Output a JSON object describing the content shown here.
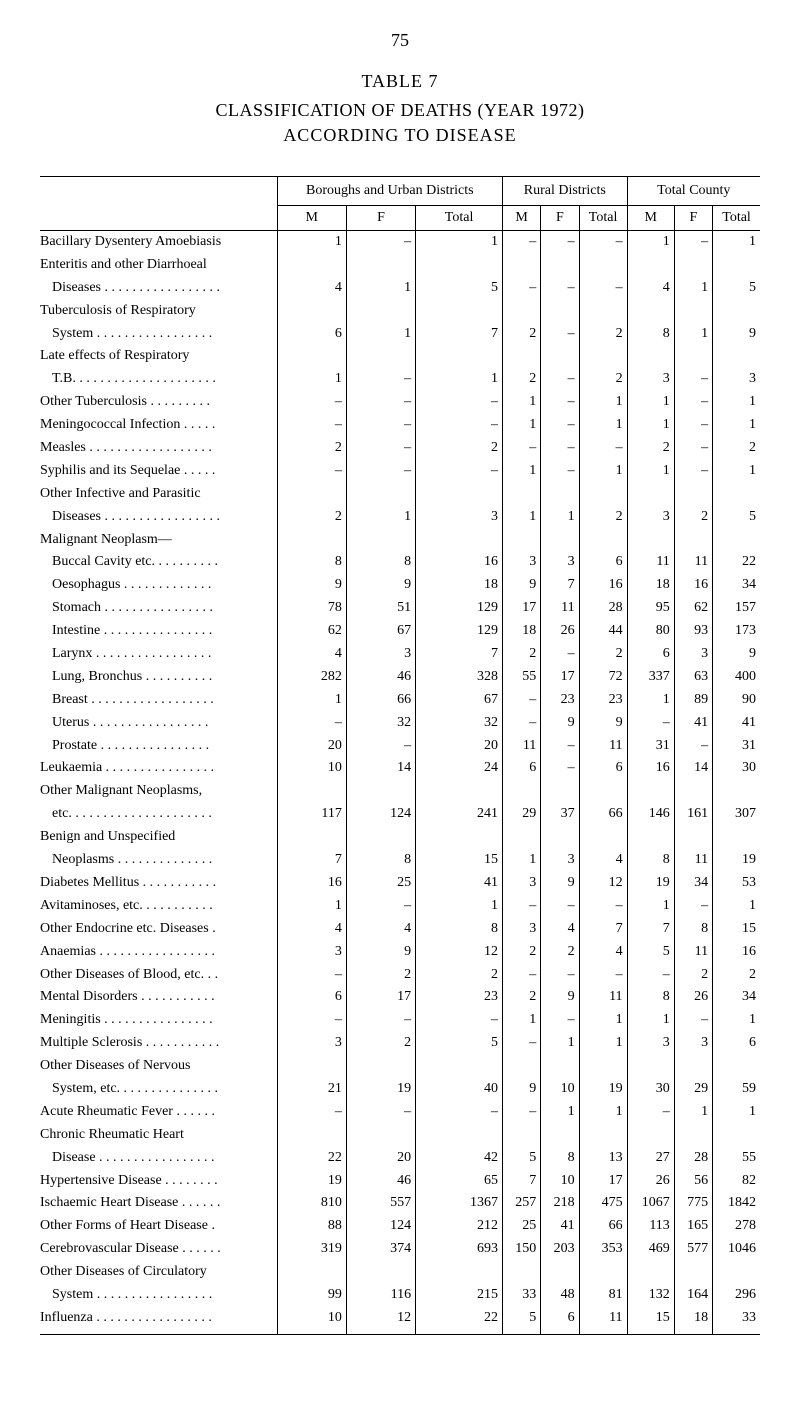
{
  "page_number": "75",
  "table_number": "TABLE 7",
  "title": "CLASSIFICATION OF DEATHS (YEAR 1972)",
  "subtitle": "ACCORDING TO DISEASE",
  "header_groups": [
    "Boroughs and Urban Districts",
    "Rural Districts",
    "Total County"
  ],
  "header_sub": [
    "M",
    "F",
    "Total",
    "M",
    "F",
    "Total",
    "M",
    "F",
    "Total"
  ],
  "rows": [
    {
      "name": "Bacillary Dysentery Amoebiasis",
      "indent": false,
      "cells": [
        "1",
        "–",
        "1",
        "–",
        "–",
        "–",
        "1",
        "–",
        "1"
      ]
    },
    {
      "name": "Enteritis and other Diarrhoeal",
      "indent": false,
      "cells": [
        "",
        "",
        "",
        "",
        "",
        "",
        "",
        "",
        ""
      ]
    },
    {
      "name": "Diseases . . . . . . . . . . . . . . . . .",
      "indent": true,
      "cells": [
        "4",
        "1",
        "5",
        "–",
        "–",
        "–",
        "4",
        "1",
        "5"
      ]
    },
    {
      "name": "Tuberculosis of Respiratory",
      "indent": false,
      "cells": [
        "",
        "",
        "",
        "",
        "",
        "",
        "",
        "",
        ""
      ]
    },
    {
      "name": "System . . . . . . . . . . . . . . . . .",
      "indent": true,
      "cells": [
        "6",
        "1",
        "7",
        "2",
        "–",
        "2",
        "8",
        "1",
        "9"
      ]
    },
    {
      "name": "Late effects of Respiratory",
      "indent": false,
      "cells": [
        "",
        "",
        "",
        "",
        "",
        "",
        "",
        "",
        ""
      ]
    },
    {
      "name": "T.B. . . . . . . . . . . . . . . . . . . . .",
      "indent": true,
      "cells": [
        "1",
        "–",
        "1",
        "2",
        "–",
        "2",
        "3",
        "–",
        "3"
      ]
    },
    {
      "name": "Other Tuberculosis . . . . . . . . .",
      "indent": false,
      "cells": [
        "–",
        "–",
        "–",
        "1",
        "–",
        "1",
        "1",
        "–",
        "1"
      ]
    },
    {
      "name": "Meningococcal Infection . . . . .",
      "indent": false,
      "cells": [
        "–",
        "–",
        "–",
        "1",
        "–",
        "1",
        "1",
        "–",
        "1"
      ]
    },
    {
      "name": "Measles . . . . . . . . . . . . . . . . . .",
      "indent": false,
      "cells": [
        "2",
        "–",
        "2",
        "–",
        "–",
        "–",
        "2",
        "–",
        "2"
      ]
    },
    {
      "name": "Syphilis and its Sequelae . . . . .",
      "indent": false,
      "cells": [
        "–",
        "–",
        "–",
        "1",
        "–",
        "1",
        "1",
        "–",
        "1"
      ]
    },
    {
      "name": "Other Infective and Parasitic",
      "indent": false,
      "cells": [
        "",
        "",
        "",
        "",
        "",
        "",
        "",
        "",
        ""
      ]
    },
    {
      "name": "Diseases . . . . . . . . . . . . . . . . .",
      "indent": true,
      "cells": [
        "2",
        "1",
        "3",
        "1",
        "1",
        "2",
        "3",
        "2",
        "5"
      ]
    },
    {
      "name": "Malignant Neoplasm—",
      "indent": false,
      "cells": [
        "",
        "",
        "",
        "",
        "",
        "",
        "",
        "",
        ""
      ]
    },
    {
      "name": "Buccal Cavity etc. . . . . . . . . .",
      "indent": true,
      "cells": [
        "8",
        "8",
        "16",
        "3",
        "3",
        "6",
        "11",
        "11",
        "22"
      ]
    },
    {
      "name": "Oesophagus . . . . . . . . . . . . .",
      "indent": true,
      "cells": [
        "9",
        "9",
        "18",
        "9",
        "7",
        "16",
        "18",
        "16",
        "34"
      ]
    },
    {
      "name": "Stomach . . . . . . . . . . . . . . . .",
      "indent": true,
      "cells": [
        "78",
        "51",
        "129",
        "17",
        "11",
        "28",
        "95",
        "62",
        "157"
      ]
    },
    {
      "name": "Intestine . . . . . . . . . . . . . . . .",
      "indent": true,
      "cells": [
        "62",
        "67",
        "129",
        "18",
        "26",
        "44",
        "80",
        "93",
        "173"
      ]
    },
    {
      "name": "Larynx . . . . . . . . . . . . . . . . .",
      "indent": true,
      "cells": [
        "4",
        "3",
        "7",
        "2",
        "–",
        "2",
        "6",
        "3",
        "9"
      ]
    },
    {
      "name": "Lung, Bronchus . . . . . . . . . .",
      "indent": true,
      "cells": [
        "282",
        "46",
        "328",
        "55",
        "17",
        "72",
        "337",
        "63",
        "400"
      ]
    },
    {
      "name": "Breast . . . . . . . . . . . . . . . . . .",
      "indent": true,
      "cells": [
        "1",
        "66",
        "67",
        "–",
        "23",
        "23",
        "1",
        "89",
        "90"
      ]
    },
    {
      "name": "Uterus . . . . . . . . . . . . . . . . .",
      "indent": true,
      "cells": [
        "–",
        "32",
        "32",
        "–",
        "9",
        "9",
        "–",
        "41",
        "41"
      ]
    },
    {
      "name": "Prostate . . . . . . . . . . . . . . . .",
      "indent": true,
      "cells": [
        "20",
        "–",
        "20",
        "11",
        "–",
        "11",
        "31",
        "–",
        "31"
      ]
    },
    {
      "name": "Leukaemia . . . . . . . . . . . . . . . .",
      "indent": false,
      "cells": [
        "10",
        "14",
        "24",
        "6",
        "–",
        "6",
        "16",
        "14",
        "30"
      ]
    },
    {
      "name": "Other Malignant Neoplasms,",
      "indent": false,
      "cells": [
        "",
        "",
        "",
        "",
        "",
        "",
        "",
        "",
        ""
      ]
    },
    {
      "name": "etc. . . . . . . . . . . . . . . . . . . . .",
      "indent": true,
      "cells": [
        "117",
        "124",
        "241",
        "29",
        "37",
        "66",
        "146",
        "161",
        "307"
      ]
    },
    {
      "name": "Benign and Unspecified",
      "indent": false,
      "cells": [
        "",
        "",
        "",
        "",
        "",
        "",
        "",
        "",
        ""
      ]
    },
    {
      "name": "Neoplasms . . . . . . . . . . . . . .",
      "indent": true,
      "cells": [
        "7",
        "8",
        "15",
        "1",
        "3",
        "4",
        "8",
        "11",
        "19"
      ]
    },
    {
      "name": "Diabetes Mellitus . . . . . . . . . . .",
      "indent": false,
      "cells": [
        "16",
        "25",
        "41",
        "3",
        "9",
        "12",
        "19",
        "34",
        "53"
      ]
    },
    {
      "name": "Avitaminoses, etc. . . . . . . . . . .",
      "indent": false,
      "cells": [
        "1",
        "–",
        "1",
        "–",
        "–",
        "–",
        "1",
        "–",
        "1"
      ]
    },
    {
      "name": "Other Endocrine etc. Diseases .",
      "indent": false,
      "cells": [
        "4",
        "4",
        "8",
        "3",
        "4",
        "7",
        "7",
        "8",
        "15"
      ]
    },
    {
      "name": "Anaemias . . . . . . . . . . . . . . . . .",
      "indent": false,
      "cells": [
        "3",
        "9",
        "12",
        "2",
        "2",
        "4",
        "5",
        "11",
        "16"
      ]
    },
    {
      "name": "Other Diseases of Blood, etc. . .",
      "indent": false,
      "cells": [
        "–",
        "2",
        "2",
        "–",
        "–",
        "–",
        "–",
        "2",
        "2"
      ]
    },
    {
      "name": "Mental Disorders . . . . . . . . . . .",
      "indent": false,
      "cells": [
        "6",
        "17",
        "23",
        "2",
        "9",
        "11",
        "8",
        "26",
        "34"
      ]
    },
    {
      "name": "Meningitis . . . . . . . . . . . . . . . .",
      "indent": false,
      "cells": [
        "–",
        "–",
        "–",
        "1",
        "–",
        "1",
        "1",
        "–",
        "1"
      ]
    },
    {
      "name": "Multiple Sclerosis . . . . . . . . . . .",
      "indent": false,
      "cells": [
        "3",
        "2",
        "5",
        "–",
        "1",
        "1",
        "3",
        "3",
        "6"
      ]
    },
    {
      "name": "Other Diseases of Nervous",
      "indent": false,
      "cells": [
        "",
        "",
        "",
        "",
        "",
        "",
        "",
        "",
        ""
      ]
    },
    {
      "name": "System, etc. . . . . . . . . . . . . . .",
      "indent": true,
      "cells": [
        "21",
        "19",
        "40",
        "9",
        "10",
        "19",
        "30",
        "29",
        "59"
      ]
    },
    {
      "name": "Acute Rheumatic Fever . . . . . .",
      "indent": false,
      "cells": [
        "–",
        "–",
        "–",
        "–",
        "1",
        "1",
        "–",
        "1",
        "1"
      ]
    },
    {
      "name": "Chronic Rheumatic Heart",
      "indent": false,
      "cells": [
        "",
        "",
        "",
        "",
        "",
        "",
        "",
        "",
        ""
      ]
    },
    {
      "name": "Disease . . . . . . . . . . . . . . . . .",
      "indent": true,
      "cells": [
        "22",
        "20",
        "42",
        "5",
        "8",
        "13",
        "27",
        "28",
        "55"
      ]
    },
    {
      "name": "Hypertensive Disease . . . . . . . .",
      "indent": false,
      "cells": [
        "19",
        "46",
        "65",
        "7",
        "10",
        "17",
        "26",
        "56",
        "82"
      ]
    },
    {
      "name": "Ischaemic Heart Disease . . . . . .",
      "indent": false,
      "cells": [
        "810",
        "557",
        "1367",
        "257",
        "218",
        "475",
        "1067",
        "775",
        "1842"
      ]
    },
    {
      "name": "Other Forms of Heart Disease .",
      "indent": false,
      "cells": [
        "88",
        "124",
        "212",
        "25",
        "41",
        "66",
        "113",
        "165",
        "278"
      ]
    },
    {
      "name": "Cerebrovascular Disease . . . . . .",
      "indent": false,
      "cells": [
        "319",
        "374",
        "693",
        "150",
        "203",
        "353",
        "469",
        "577",
        "1046"
      ]
    },
    {
      "name": "Other Diseases of Circulatory",
      "indent": false,
      "cells": [
        "",
        "",
        "",
        "",
        "",
        "",
        "",
        "",
        ""
      ]
    },
    {
      "name": "System . . . . . . . . . . . . . . . . .",
      "indent": true,
      "cells": [
        "99",
        "116",
        "215",
        "33",
        "48",
        "81",
        "132",
        "164",
        "296"
      ]
    },
    {
      "name": "Influenza . . . . . . . . . . . . . . . . .",
      "indent": false,
      "cells": [
        "10",
        "12",
        "22",
        "5",
        "6",
        "11",
        "15",
        "18",
        "33"
      ]
    }
  ],
  "styling": {
    "font_family": "Georgia, Times New Roman, serif",
    "background_color": "#ffffff",
    "text_color": "#000000",
    "border_color": "#000000",
    "body_font_size": 14,
    "title_font_size": 18
  }
}
